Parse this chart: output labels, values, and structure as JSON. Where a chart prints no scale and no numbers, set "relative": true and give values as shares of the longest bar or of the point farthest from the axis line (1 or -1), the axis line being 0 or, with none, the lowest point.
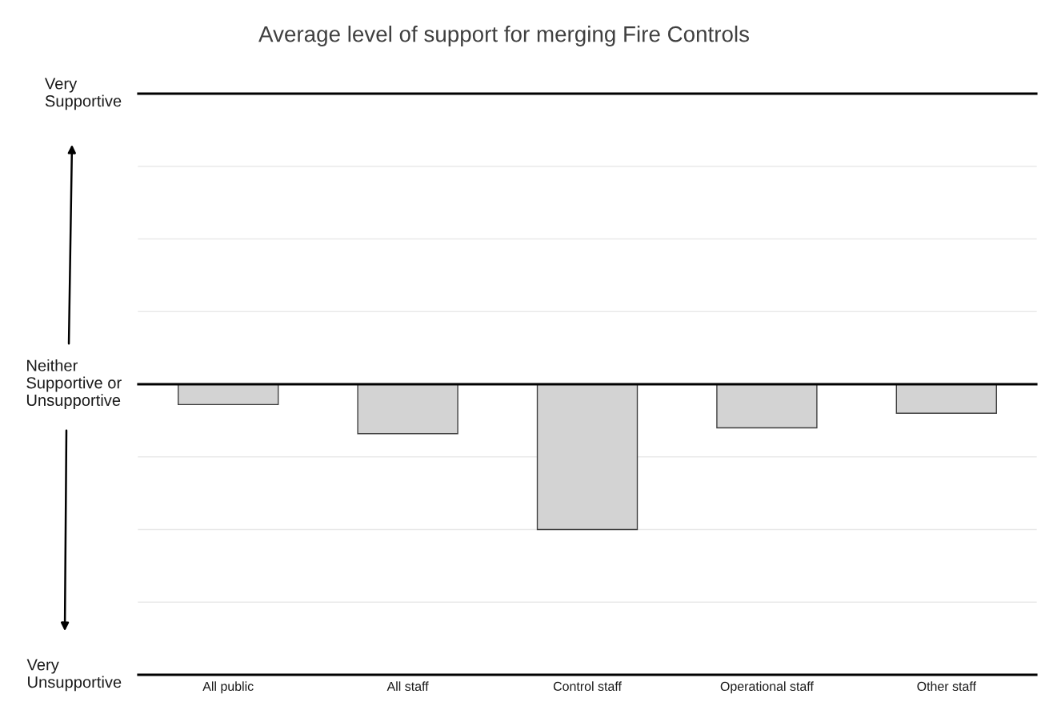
{
  "chart_data": {
    "type": "bar",
    "title": "Average level of support for merging Fire Controls",
    "categories": [
      "All public",
      "All staff",
      "Control staff",
      "Operational staff",
      "Other staff"
    ],
    "values": [
      -0.14,
      -0.34,
      -1,
      -0.3,
      -0.2
    ],
    "color": "#d3d3d3",
    "relative": true,
    "ref_lines": [
      {
        "axis": "y",
        "value": 2,
        "label": "Very\nSupportive",
        "color": "#000000"
      },
      {
        "axis": "y",
        "value": 1.5,
        "color": "#e9e9e9"
      },
      {
        "axis": "y",
        "value": 1,
        "color": "#e9e9e9"
      },
      {
        "axis": "y",
        "value": 0.5,
        "color": "#e9e9e9"
      },
      {
        "axis": "y",
        "value": 0,
        "label": "Neither\nSupportive or\nUnsupportive",
        "color": "#000000"
      },
      {
        "axis": "y",
        "value": -0.5,
        "color": "#e9e9e9"
      },
      {
        "axis": "y",
        "value": -1,
        "color": "#e9e9e9"
      },
      {
        "axis": "y",
        "value": -1.5,
        "color": "#e9e9e9"
      }
    ],
    "annotations": [
      "Very\nUnsupportive"
    ]
  }
}
